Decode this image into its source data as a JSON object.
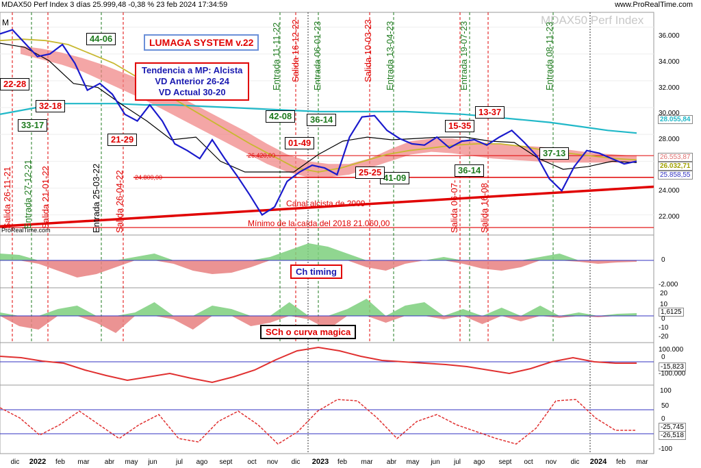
{
  "header": {
    "title": "MDAX50 Perf Index 3 días 25.999,48 -0,38 % 23 feb 2024 17:34:59",
    "brand": "www.ProRealTime.com",
    "watermark": "MDAX50 Perf Index",
    "corner_m": "M",
    "pr_tag": "ProRealTime.com"
  },
  "annotations": {
    "system_title": "LUMAGA SYSTEM v.22",
    "trend": [
      "Tendencia a MP: Alcista",
      "VD Anterior 26-24",
      "VD Actual 30-20"
    ],
    "ch_timing": "Ch timing",
    "sch_curve": "SCh o curva magica",
    "canal": "Canal alcista de 2009",
    "minimo": "Mínimo de la caída del 2018 21.060,00",
    "level_24800": "24.800,00",
    "level_26420": "26.420,00",
    "green_boxes": [
      {
        "id": "g1",
        "text": "44-06"
      },
      {
        "id": "g2",
        "text": "33-17"
      },
      {
        "id": "g3",
        "text": "42-08"
      },
      {
        "id": "g4",
        "text": "36-14"
      },
      {
        "id": "g5",
        "text": "41-09"
      },
      {
        "id": "g6",
        "text": "36-14"
      },
      {
        "id": "g7",
        "text": "37-13"
      }
    ],
    "red_boxes": [
      {
        "id": "r1",
        "text": "22-28"
      },
      {
        "id": "r2",
        "text": "32-18"
      },
      {
        "id": "r3",
        "text": "21-29"
      },
      {
        "id": "r4",
        "text": "01-49"
      },
      {
        "id": "r5",
        "text": "25-25"
      },
      {
        "id": "r6",
        "text": "15-35"
      },
      {
        "id": "r7",
        "text": "13-37"
      }
    ],
    "vertical_texts": [
      {
        "id": "v1",
        "text": "Salida 26-11-21",
        "color": "#e00000"
      },
      {
        "id": "v2",
        "text": "Entrada 27-12-21",
        "color": "#1d7a1d"
      },
      {
        "id": "v3",
        "text": "Salida 21-01-22",
        "color": "#e00000"
      },
      {
        "id": "v4",
        "text": "Entrada 25-03-22",
        "color": "#000000"
      },
      {
        "id": "v5",
        "text": "Salida 26-04-22",
        "color": "#e00000"
      },
      {
        "id": "v6",
        "text": "Entrada 11-11-22",
        "color": "#1d7a1d"
      },
      {
        "id": "v7",
        "text": "Salida 16-12-22",
        "color": "#e00000"
      },
      {
        "id": "v8",
        "text": "Entrada 06-01-23",
        "color": "#1d7a1d"
      },
      {
        "id": "v9",
        "text": "Salida 10-03-23",
        "color": "#e00000"
      },
      {
        "id": "v10",
        "text": "Entrada 13-04-23",
        "color": "#1d7a1d"
      },
      {
        "id": "v11",
        "text": "Entrada 19-07-23",
        "color": "#1d7a1d"
      },
      {
        "id": "v12",
        "text": "Salida 16-08-23",
        "color": "#e00000"
      },
      {
        "id": "v13",
        "text": "Entrada 08-11-23",
        "color": "#1d7a1d"
      },
      {
        "id": "v14",
        "text": "Salida 06-07-",
        "color": "#e00000"
      },
      {
        "id": "v15",
        "text": "Salida 16-08",
        "color": "#e00000"
      }
    ]
  },
  "price_tags": [
    {
      "id": "p1",
      "text": "28.055,84",
      "color": "#1fb8c8"
    },
    {
      "id": "p2",
      "text": "26.553,87",
      "color": "#e07070"
    },
    {
      "id": "p3",
      "text": "26.032,71",
      "color": "#a0a000"
    },
    {
      "id": "p4",
      "text": "25.858,55",
      "color": "#3030c0"
    }
  ],
  "indicator_tags": [
    {
      "id": "i1",
      "text": "1,6125"
    },
    {
      "id": "i2",
      "text": "-15,823"
    },
    {
      "id": "i3",
      "text": "-25,745"
    },
    {
      "id": "i4",
      "text": "-26,518"
    }
  ],
  "colors": {
    "price": "#1a1acc",
    "ma_cyan": "#20b8c8",
    "ma_olive": "#c8b830",
    "ma_black": "#000000",
    "cloud_red": "#f08080",
    "cloud_cyan": "#a0e8f0",
    "channel": "#e00000",
    "pos": "#7ccf7c",
    "neg": "#e88080",
    "ref_line": "#3030c0"
  },
  "chart_data": {
    "type": "line",
    "ylim": [
      20500,
      37000
    ],
    "y_ticks": [
      "36.000",
      "34.000",
      "32.000",
      "30.000",
      "28.000",
      "26.000",
      "24.000",
      "22.000"
    ],
    "x_ticks": [
      "dic",
      "2022",
      "feb",
      "mar",
      "abr",
      "may",
      "jun",
      "jul",
      "ago",
      "sept",
      "oct",
      "nov",
      "dic",
      "2023",
      "feb",
      "mar",
      "abr",
      "may",
      "jun",
      "jul",
      "ago",
      "sept",
      "oct",
      "nov",
      "dic",
      "2024",
      "feb",
      "mar"
    ],
    "horizontal_levels": [
      24800,
      26420,
      21060
    ],
    "series": [
      {
        "name": "MDAX50 Perf Index",
        "values": [
          35500,
          35800,
          34800,
          33800,
          34000,
          34700,
          33300,
          31300,
          31800,
          31000,
          29500,
          29000,
          30200,
          29000,
          27300,
          26800,
          26200,
          27600,
          26200,
          24900,
          23500,
          22000,
          22600,
          24500,
          25200,
          25700,
          25500,
          25000,
          27800,
          29300,
          29400,
          28300,
          27700,
          27300,
          27200,
          27800,
          27000,
          27500,
          27600,
          27200,
          27800,
          28300,
          27400,
          26400,
          24700,
          23800,
          25600,
          26800,
          26600,
          26200,
          25800,
          26000
        ]
      }
    ],
    "oscillators": [
      {
        "name": "Ch timing",
        "ticks": [
          "0",
          "-2.000"
        ]
      },
      {
        "name": "SCh o curva magica",
        "ticks": [
          "20",
          "10",
          "0",
          "-10",
          "-20"
        ]
      },
      {
        "name": "osc3",
        "ticks": [
          "100.000",
          "0",
          "-100.000"
        ]
      },
      {
        "name": "osc4",
        "ticks": [
          "100",
          "50",
          "0",
          "-50",
          "-100"
        ]
      }
    ]
  }
}
